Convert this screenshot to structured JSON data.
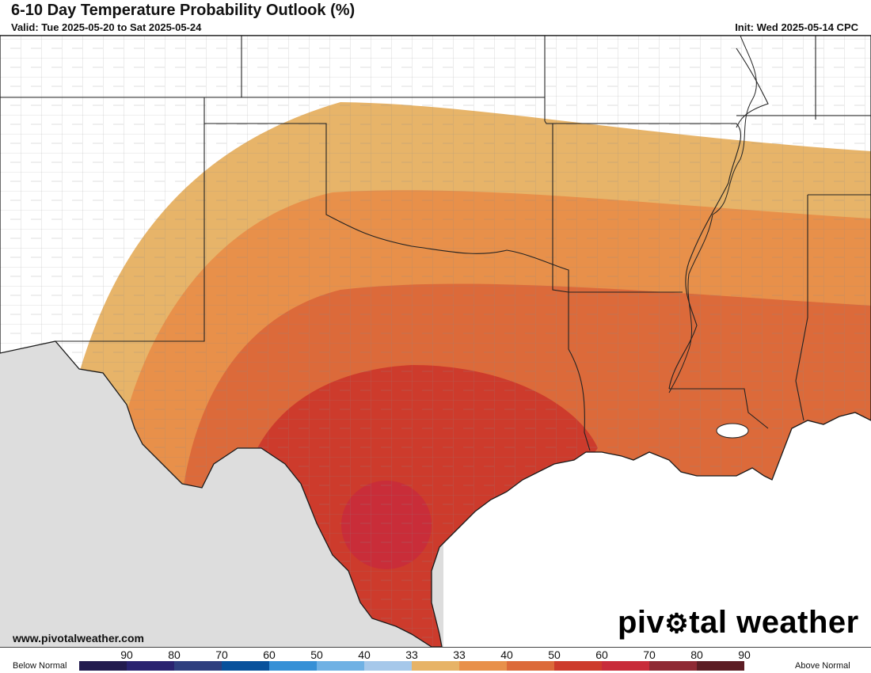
{
  "header": {
    "title": "6-10 Day Temperature Probability Outlook (%)",
    "valid": "Valid: Tue 2025-05-20 to Sat 2025-05-24",
    "init": "Init: Wed 2025-05-14 CPC"
  },
  "footer": {
    "website": "www.pivotalweather.com",
    "brand": "pivotal weather",
    "brand_icon": "gear-icon"
  },
  "legend": {
    "below_label": "Below Normal",
    "above_label": "Above Normal",
    "below": [
      {
        "label": "90",
        "color": "#231c4f"
      },
      {
        "label": "80",
        "color": "#2a2370"
      },
      {
        "label": "70",
        "color": "#2f3f7f"
      },
      {
        "label": "60",
        "color": "#08519c"
      },
      {
        "label": "50",
        "color": "#3690d6"
      },
      {
        "label": "40",
        "color": "#6fb1e4"
      },
      {
        "label": "33",
        "color": "#a6c8ea"
      }
    ],
    "above": [
      {
        "label": "33",
        "color": "#e7b366"
      },
      {
        "label": "40",
        "color": "#e8904a"
      },
      {
        "label": "50",
        "color": "#dc6a3a"
      },
      {
        "label": "60",
        "color": "#cd3b2c"
      },
      {
        "label": "70",
        "color": "#c82c3a"
      },
      {
        "label": "80",
        "color": "#8f2a34"
      },
      {
        "label": "90",
        "color": "#5c1d24"
      }
    ]
  },
  "map": {
    "region": "Southern Plains / Gulf Coast",
    "contours": [
      {
        "category": "above",
        "level": "33",
        "color": "#e7b366"
      },
      {
        "category": "above",
        "level": "40",
        "color": "#e8904a"
      },
      {
        "category": "above",
        "level": "50",
        "color": "#dc6a3a"
      },
      {
        "category": "above",
        "level": "60",
        "color": "#cd3b2c"
      },
      {
        "category": "above",
        "level": "70",
        "color": "#c82c3a"
      }
    ],
    "colors": {
      "land": "#ffffff",
      "outside_us": "#dddddd",
      "water": "#ffffff",
      "state_line": "#222222",
      "county_line": "#8a8a8a"
    }
  }
}
